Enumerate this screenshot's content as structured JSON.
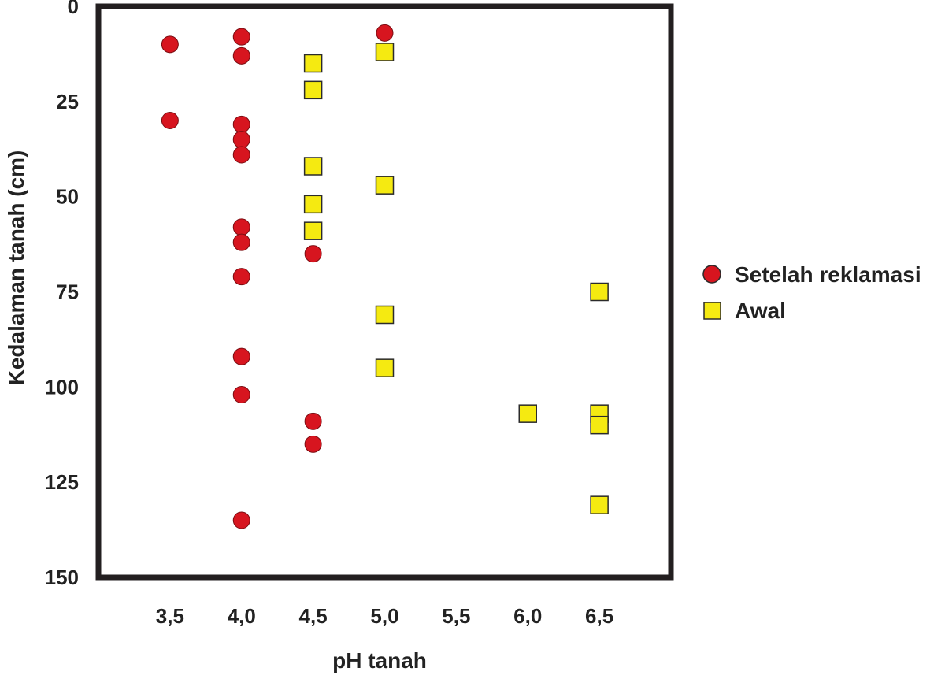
{
  "chart_data": {
    "type": "scatter",
    "title": "",
    "xlabel": "pH tanah",
    "ylabel": "Kedalaman tanah (cm)",
    "xlim": [
      3.0,
      7.0
    ],
    "ylim": [
      0,
      150
    ],
    "y_inverted": true,
    "x_ticks": [
      3.5,
      4.0,
      4.5,
      5.0,
      5.5,
      6.0,
      6.5
    ],
    "x_tick_labels": [
      "3,5",
      "4,0",
      "4,5",
      "5,0",
      "5,5",
      "6,0",
      "6,5"
    ],
    "y_ticks": [
      0,
      25,
      50,
      75,
      100,
      125,
      150
    ],
    "y_tick_labels": [
      "0",
      "25",
      "50",
      "75",
      "100",
      "125",
      "150"
    ],
    "grid": false,
    "legend_position": "right",
    "series": [
      {
        "name": "Setelah reklamasi",
        "marker": "circle",
        "color": "#d7151f",
        "points": [
          {
            "x": 3.5,
            "y": 10
          },
          {
            "x": 3.5,
            "y": 30
          },
          {
            "x": 4.0,
            "y": 8
          },
          {
            "x": 4.0,
            "y": 13
          },
          {
            "x": 4.0,
            "y": 31
          },
          {
            "x": 4.0,
            "y": 35
          },
          {
            "x": 4.0,
            "y": 39
          },
          {
            "x": 4.0,
            "y": 58
          },
          {
            "x": 4.0,
            "y": 62
          },
          {
            "x": 4.0,
            "y": 71
          },
          {
            "x": 4.0,
            "y": 92
          },
          {
            "x": 4.0,
            "y": 102
          },
          {
            "x": 4.0,
            "y": 135
          },
          {
            "x": 4.5,
            "y": 65
          },
          {
            "x": 4.5,
            "y": 109
          },
          {
            "x": 4.5,
            "y": 115
          },
          {
            "x": 5.0,
            "y": 7
          }
        ]
      },
      {
        "name": "Awal",
        "marker": "square",
        "color": "#f5ea11",
        "points": [
          {
            "x": 4.5,
            "y": 15
          },
          {
            "x": 4.5,
            "y": 22
          },
          {
            "x": 4.5,
            "y": 42
          },
          {
            "x": 4.5,
            "y": 52
          },
          {
            "x": 4.5,
            "y": 59
          },
          {
            "x": 5.0,
            "y": 12
          },
          {
            "x": 5.0,
            "y": 47
          },
          {
            "x": 5.0,
            "y": 81
          },
          {
            "x": 5.0,
            "y": 95
          },
          {
            "x": 6.0,
            "y": 107
          },
          {
            "x": 6.5,
            "y": 75
          },
          {
            "x": 6.5,
            "y": 107
          },
          {
            "x": 6.5,
            "y": 110
          },
          {
            "x": 6.5,
            "y": 131
          }
        ]
      }
    ]
  }
}
